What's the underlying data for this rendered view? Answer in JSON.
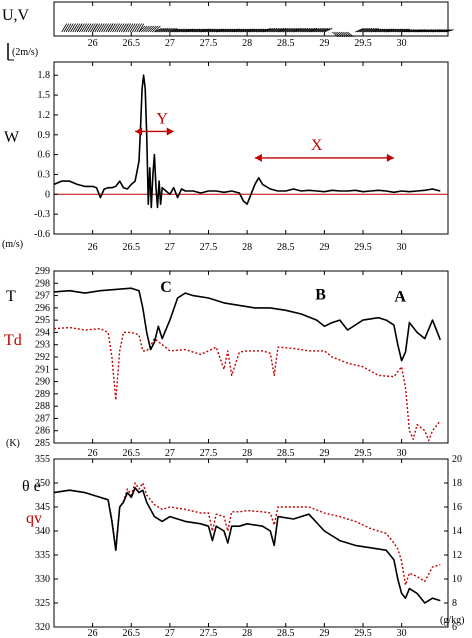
{
  "chart_data": [
    {
      "type": "line",
      "panel": "wind-vectors",
      "ylabel": "U,V",
      "scale_label": "(2m/s)",
      "xlim": [
        25.5,
        30.6
      ],
      "x_ticks": [
        "26",
        "26.5",
        "27",
        "27.5",
        "28",
        "28.5",
        "29",
        "29.5",
        "30"
      ],
      "barbs": [
        {
          "x": 25.6,
          "u": 1.0,
          "v": 1.4
        },
        {
          "x": 25.8,
          "u": 1.0,
          "v": 1.4
        },
        {
          "x": 26.0,
          "u": 1.0,
          "v": 1.4
        },
        {
          "x": 26.2,
          "u": 1.0,
          "v": 1.4
        },
        {
          "x": 26.4,
          "u": 1.0,
          "v": 1.4
        },
        {
          "x": 26.6,
          "u": 1.2,
          "v": 1.0
        },
        {
          "x": 26.8,
          "u": 1.4,
          "v": 0.6
        },
        {
          "x": 27.0,
          "u": 1.6,
          "v": 0.5
        },
        {
          "x": 27.2,
          "u": 1.6,
          "v": 0.5
        },
        {
          "x": 27.4,
          "u": 1.6,
          "v": 0.5
        },
        {
          "x": 27.6,
          "u": 1.6,
          "v": 0.5
        },
        {
          "x": 27.8,
          "u": 1.6,
          "v": 0.5
        },
        {
          "x": 28.0,
          "u": 1.6,
          "v": 0.5
        },
        {
          "x": 28.2,
          "u": 1.6,
          "v": 0.6
        },
        {
          "x": 28.4,
          "u": 1.6,
          "v": 0.6
        },
        {
          "x": 28.6,
          "u": 1.6,
          "v": 0.6
        },
        {
          "x": 28.8,
          "u": 1.6,
          "v": 0.6
        },
        {
          "x": 29.1,
          "u": 1.2,
          "v": -0.8
        },
        {
          "x": 29.4,
          "u": 1.6,
          "v": 0.6
        },
        {
          "x": 29.6,
          "u": 1.6,
          "v": 0.5
        },
        {
          "x": 29.8,
          "u": 1.6,
          "v": 0.5
        },
        {
          "x": 30.0,
          "u": 1.6,
          "v": 0.4
        },
        {
          "x": 30.2,
          "u": 1.6,
          "v": 0.4
        },
        {
          "x": 30.4,
          "u": 1.6,
          "v": 0.4
        }
      ]
    },
    {
      "type": "line",
      "panel": "vertical-velocity",
      "ylabel": "W",
      "yunit": "(m/s)",
      "xlim": [
        25.5,
        30.6
      ],
      "ylim": [
        -0.6,
        2.0
      ],
      "x_ticks": [
        "26",
        "26.5",
        "27",
        "27.5",
        "28",
        "28.5",
        "29",
        "29.5",
        "30"
      ],
      "y_ticks": [
        "-0.6",
        "-0.3",
        "0",
        "0.3",
        "0.6",
        "0.9",
        "1.2",
        "1.5",
        "1.8"
      ],
      "zero_line": 0,
      "series": [
        {
          "color": "#000000",
          "x": [
            25.5,
            25.6,
            25.7,
            25.8,
            25.9,
            26.0,
            26.05,
            26.1,
            26.15,
            26.2,
            26.25,
            26.3,
            26.35,
            26.4,
            26.45,
            26.5,
            26.55,
            26.6,
            26.62,
            26.64,
            26.66,
            26.68,
            26.7,
            26.72,
            26.74,
            26.76,
            26.78,
            26.8,
            26.82,
            26.84,
            26.86,
            26.88,
            26.9,
            26.95,
            27.0,
            27.05,
            27.1,
            27.15,
            27.2,
            27.3,
            27.4,
            27.5,
            27.6,
            27.7,
            27.8,
            27.9,
            27.95,
            28.0,
            28.05,
            28.1,
            28.15,
            28.2,
            28.3,
            28.4,
            28.5,
            28.6,
            28.7,
            28.8,
            28.9,
            29.0,
            29.1,
            29.2,
            29.3,
            29.4,
            29.5,
            29.6,
            29.7,
            29.8,
            29.9,
            30.0,
            30.1,
            30.2,
            30.3,
            30.4,
            30.5
          ],
          "values": [
            0.15,
            0.2,
            0.2,
            0.15,
            0.12,
            0.12,
            0.1,
            -0.05,
            0.08,
            0.1,
            0.1,
            0.12,
            0.2,
            0.1,
            0.08,
            0.15,
            0.2,
            0.5,
            1.0,
            1.6,
            1.8,
            1.6,
            0.9,
            -0.15,
            0.4,
            -0.2,
            0.3,
            0.6,
            0.1,
            -0.2,
            0.2,
            -0.15,
            0.1,
            0.05,
            0.0,
            0.1,
            -0.05,
            0.08,
            0.05,
            0.05,
            0.02,
            0.05,
            0.05,
            0.03,
            0.05,
            0.02,
            -0.1,
            -0.15,
            0.0,
            0.15,
            0.25,
            0.15,
            0.08,
            0.05,
            0.05,
            0.08,
            0.05,
            0.06,
            0.05,
            0.04,
            0.06,
            0.05,
            0.05,
            0.06,
            0.04,
            0.05,
            0.06,
            0.05,
            0.03,
            0.05,
            0.04,
            0.05,
            0.06,
            0.08,
            0.05
          ]
        }
      ],
      "annotations": [
        {
          "label": "Y",
          "x": 26.9,
          "from": 26.55,
          "to": 27.05,
          "y": 0.95
        },
        {
          "label": "X",
          "x": 28.9,
          "from": 28.1,
          "to": 29.9,
          "y": 0.55
        }
      ]
    },
    {
      "type": "line",
      "panel": "temperature",
      "ylabel": "T",
      "yunit": "(K)",
      "xlim": [
        25.5,
        30.6
      ],
      "ylim": [
        285,
        299
      ],
      "x_ticks": [
        "26",
        "26.5",
        "27",
        "27.5",
        "28",
        "28.5",
        "29",
        "29.5",
        "30"
      ],
      "y_ticks": [
        "285",
        "286",
        "287",
        "288",
        "289",
        "290",
        "291",
        "292",
        "293",
        "294",
        "295",
        "296",
        "297",
        "298",
        "299"
      ],
      "series": [
        {
          "name": "T",
          "color": "#000000",
          "style": "solid",
          "x": [
            25.5,
            25.7,
            25.9,
            26.1,
            26.3,
            26.5,
            26.6,
            26.65,
            26.7,
            26.75,
            26.8,
            26.85,
            26.9,
            27.0,
            27.1,
            27.2,
            27.3,
            27.5,
            27.7,
            27.9,
            28.1,
            28.3,
            28.5,
            28.7,
            28.9,
            29.0,
            29.1,
            29.2,
            29.3,
            29.5,
            29.7,
            29.8,
            29.9,
            29.95,
            30.0,
            30.05,
            30.1,
            30.2,
            30.3,
            30.4,
            30.5
          ],
          "values": [
            297.3,
            297.4,
            297.2,
            297.4,
            297.5,
            297.6,
            297.4,
            296.0,
            294.0,
            292.6,
            293.2,
            294.5,
            293.5,
            295.0,
            296.8,
            297.2,
            297.0,
            296.8,
            296.4,
            296.2,
            296.0,
            296.0,
            295.8,
            295.5,
            295.0,
            294.5,
            294.8,
            295.0,
            294.2,
            295.0,
            295.2,
            295.0,
            294.6,
            293.0,
            291.7,
            292.4,
            294.8,
            294.0,
            293.5,
            295.0,
            293.4
          ]
        },
        {
          "name": "Td",
          "color": "#c00000",
          "style": "dotted",
          "x": [
            25.5,
            25.7,
            25.9,
            26.1,
            26.2,
            26.25,
            26.3,
            26.35,
            26.4,
            26.5,
            26.6,
            26.65,
            26.7,
            26.75,
            26.8,
            26.9,
            27.0,
            27.2,
            27.4,
            27.6,
            27.7,
            27.75,
            27.8,
            27.9,
            28.0,
            28.2,
            28.3,
            28.35,
            28.4,
            28.6,
            28.8,
            29.0,
            29.1,
            29.3,
            29.5,
            29.7,
            29.9,
            30.0,
            30.05,
            30.1,
            30.15,
            30.2,
            30.3,
            30.35,
            30.4,
            30.5
          ],
          "values": [
            294.3,
            294.4,
            294.2,
            294.3,
            294.0,
            292.0,
            288.5,
            292.5,
            294.0,
            294.0,
            293.8,
            292.5,
            292.5,
            292.9,
            293.5,
            293.0,
            292.5,
            292.6,
            292.2,
            292.8,
            291.0,
            292.5,
            290.5,
            292.4,
            292.5,
            292.5,
            292.3,
            290.5,
            292.8,
            292.7,
            292.5,
            292.5,
            292.0,
            291.5,
            291.2,
            290.5,
            290.4,
            291.2,
            289.5,
            286.0,
            285.3,
            286.5,
            286.0,
            285.2,
            286.0,
            286.8
          ]
        }
      ],
      "annotations": [
        {
          "label": "C",
          "x": 26.95,
          "y": 297.3
        },
        {
          "label": "B",
          "x": 28.95,
          "y": 296.7
        },
        {
          "label": "A",
          "x": 29.98,
          "y": 296.5
        }
      ]
    },
    {
      "type": "line",
      "panel": "theta-e-qv",
      "ylabel_left": "θ e",
      "ylabel_left2": "qv",
      "yunit_right": "(g/kg)",
      "xlim": [
        25.5,
        30.6
      ],
      "ylim_left": [
        320,
        355
      ],
      "ylim_right": [
        6,
        20
      ],
      "x_ticks": [
        "26",
        "26.5",
        "27",
        "27.5",
        "28",
        "28.5",
        "29",
        "29.5",
        "30"
      ],
      "y_ticks_left": [
        "320",
        "325",
        "330",
        "335",
        "340",
        "345",
        "350",
        "355"
      ],
      "y_ticks_right": [
        "6",
        "8",
        "10",
        "12",
        "14",
        "16",
        "18",
        "20"
      ],
      "series": [
        {
          "name": "θ e",
          "color": "#000000",
          "style": "solid",
          "axis": "left",
          "x": [
            25.5,
            25.7,
            25.9,
            26.1,
            26.2,
            26.25,
            26.3,
            26.35,
            26.4,
            26.45,
            26.5,
            26.55,
            26.6,
            26.65,
            26.7,
            26.8,
            26.9,
            27.0,
            27.2,
            27.4,
            27.5,
            27.55,
            27.6,
            27.7,
            27.75,
            27.8,
            27.9,
            28.0,
            28.2,
            28.3,
            28.35,
            28.4,
            28.6,
            28.8,
            29.0,
            29.2,
            29.4,
            29.6,
            29.8,
            29.9,
            29.95,
            30.0,
            30.05,
            30.1,
            30.2,
            30.3,
            30.4,
            30.5
          ],
          "values": [
            348.0,
            348.5,
            348.0,
            347.0,
            346.5,
            342.0,
            336.0,
            345.0,
            346.0,
            348.0,
            347.0,
            349.0,
            348.0,
            348.5,
            346.0,
            343.0,
            342.0,
            343.0,
            342.0,
            341.5,
            341.0,
            338.0,
            341.0,
            340.0,
            337.5,
            341.0,
            341.0,
            341.5,
            341.0,
            340.0,
            337.0,
            343.0,
            342.5,
            343.5,
            340.0,
            338.0,
            337.0,
            336.5,
            336.0,
            334.0,
            330.0,
            327.0,
            326.0,
            328.0,
            327.0,
            325.0,
            326.0,
            325.5
          ]
        },
        {
          "name": "qv",
          "color": "#c00000",
          "style": "dotted",
          "axis": "right",
          "x": [
            25.5,
            25.7,
            25.9,
            26.1,
            26.2,
            26.25,
            26.3,
            26.35,
            26.4,
            26.45,
            26.5,
            26.55,
            26.6,
            26.65,
            26.7,
            26.8,
            26.9,
            27.0,
            27.2,
            27.4,
            27.5,
            27.55,
            27.6,
            27.7,
            27.75,
            27.8,
            27.9,
            28.0,
            28.2,
            28.3,
            28.35,
            28.4,
            28.6,
            28.8,
            29.0,
            29.2,
            29.4,
            29.6,
            29.8,
            29.9,
            29.95,
            30.0,
            30.05,
            30.1,
            30.2,
            30.3,
            30.4,
            30.5
          ],
          "values": [
            17.2,
            17.4,
            17.2,
            16.8,
            16.6,
            15.0,
            12.4,
            16.0,
            16.5,
            17.5,
            17.0,
            18.0,
            17.5,
            18.0,
            17.0,
            16.2,
            15.8,
            16.0,
            15.8,
            15.5,
            15.5,
            14.0,
            15.4,
            15.2,
            14.0,
            15.6,
            15.6,
            15.7,
            15.6,
            15.5,
            14.5,
            16.0,
            16.0,
            16.0,
            15.5,
            15.2,
            14.8,
            14.2,
            13.8,
            13.0,
            12.5,
            11.5,
            9.5,
            10.5,
            10.2,
            9.8,
            11.0,
            11.2
          ]
        }
      ]
    }
  ]
}
